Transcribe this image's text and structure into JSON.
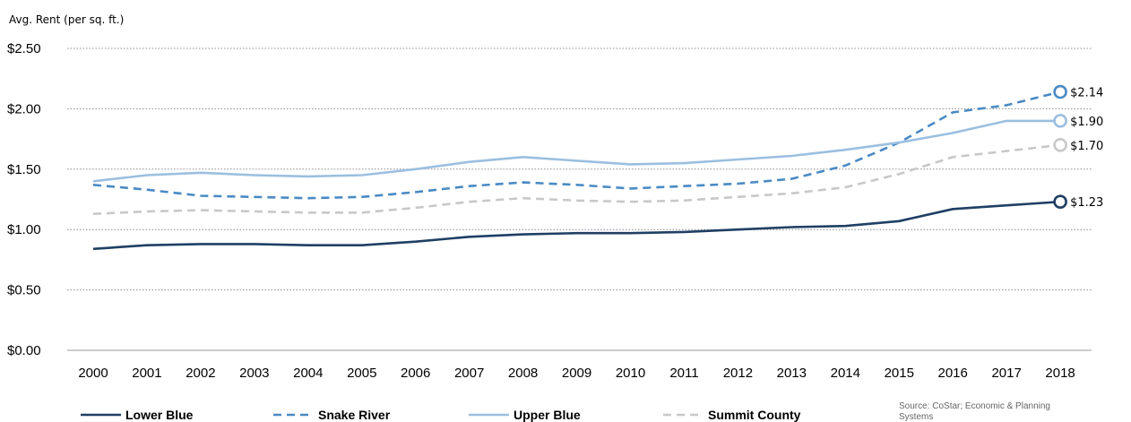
{
  "chart_data": {
    "type": "line",
    "ylabel": "Avg. Rent (per sq. ft.)",
    "x": [
      "2000",
      "2001",
      "2002",
      "2003",
      "2004",
      "2005",
      "2006",
      "2007",
      "2008",
      "2009",
      "2010",
      "2011",
      "2012",
      "2013",
      "2014",
      "2015",
      "2016",
      "2017",
      "2018"
    ],
    "y_ticks": [
      "$0.00",
      "$0.50",
      "$1.00",
      "$1.50",
      "$2.00",
      "$2.50"
    ],
    "ylim": [
      0,
      2.5
    ],
    "grid": "horizontal dotted",
    "legend_position": "bottom",
    "series": [
      {
        "name": "Lower Blue",
        "style": "solid",
        "color": "#1f3f64",
        "values": [
          0.84,
          0.87,
          0.88,
          0.88,
          0.87,
          0.87,
          0.9,
          0.94,
          0.96,
          0.97,
          0.97,
          0.98,
          1.0,
          1.02,
          1.03,
          1.07,
          1.17,
          1.2,
          1.23
        ],
        "end_label": "$1.23"
      },
      {
        "name": "Snake River",
        "style": "dashed",
        "color": "#4a8ac4",
        "values": [
          1.37,
          1.33,
          1.28,
          1.27,
          1.26,
          1.27,
          1.31,
          1.36,
          1.39,
          1.37,
          1.34,
          1.36,
          1.38,
          1.42,
          1.53,
          1.72,
          1.97,
          2.03,
          2.14
        ],
        "end_label": "$2.14"
      },
      {
        "name": "Upper Blue",
        "style": "solid",
        "color": "#9bbfe0",
        "values": [
          1.4,
          1.45,
          1.47,
          1.45,
          1.44,
          1.45,
          1.5,
          1.56,
          1.6,
          1.57,
          1.54,
          1.55,
          1.58,
          1.61,
          1.66,
          1.72,
          1.8,
          1.9,
          1.9
        ],
        "end_label": "$1.90"
      },
      {
        "name": "Summit County",
        "style": "dashed",
        "color": "#c8c8c8",
        "values": [
          1.13,
          1.15,
          1.16,
          1.15,
          1.14,
          1.14,
          1.18,
          1.23,
          1.26,
          1.24,
          1.23,
          1.24,
          1.27,
          1.3,
          1.35,
          1.46,
          1.6,
          1.65,
          1.7
        ],
        "end_label": "$1.70"
      }
    ],
    "source": "Source: CoStar; Economic & Planning Systems"
  }
}
